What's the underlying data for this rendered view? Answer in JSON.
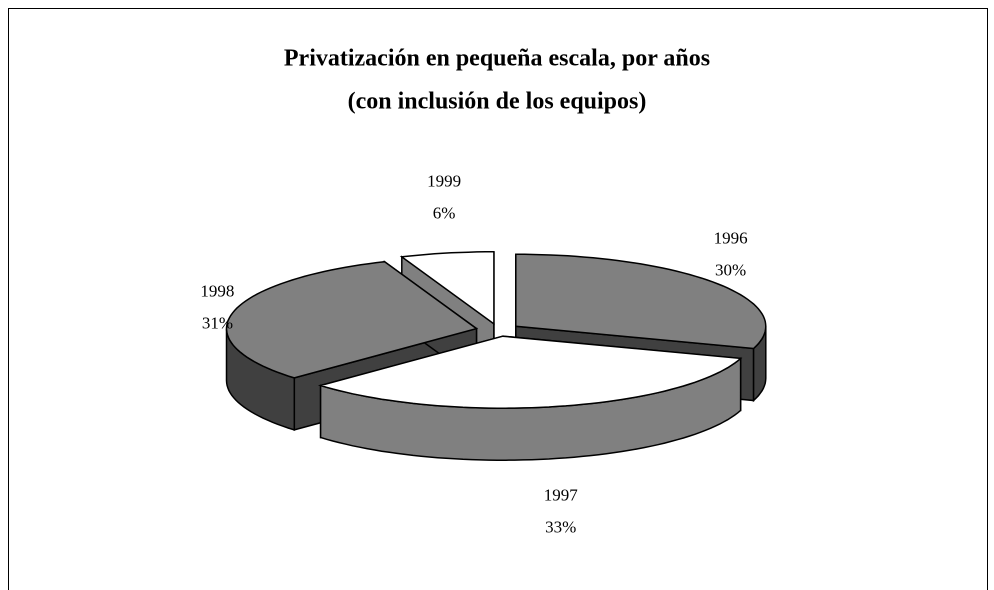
{
  "chart_data": {
    "type": "pie",
    "title": "Privatización en pequeña escala, por años",
    "subtitle": "(con inclusión de los equipos)",
    "categories": [
      "1996",
      "1997",
      "1998",
      "1999"
    ],
    "values": [
      30,
      33,
      31,
      6
    ],
    "value_labels": [
      "30%",
      "33%",
      "31%",
      "6%"
    ],
    "colors": [
      "#808080",
      "#ffffff",
      "#808080",
      "#ffffff"
    ]
  }
}
